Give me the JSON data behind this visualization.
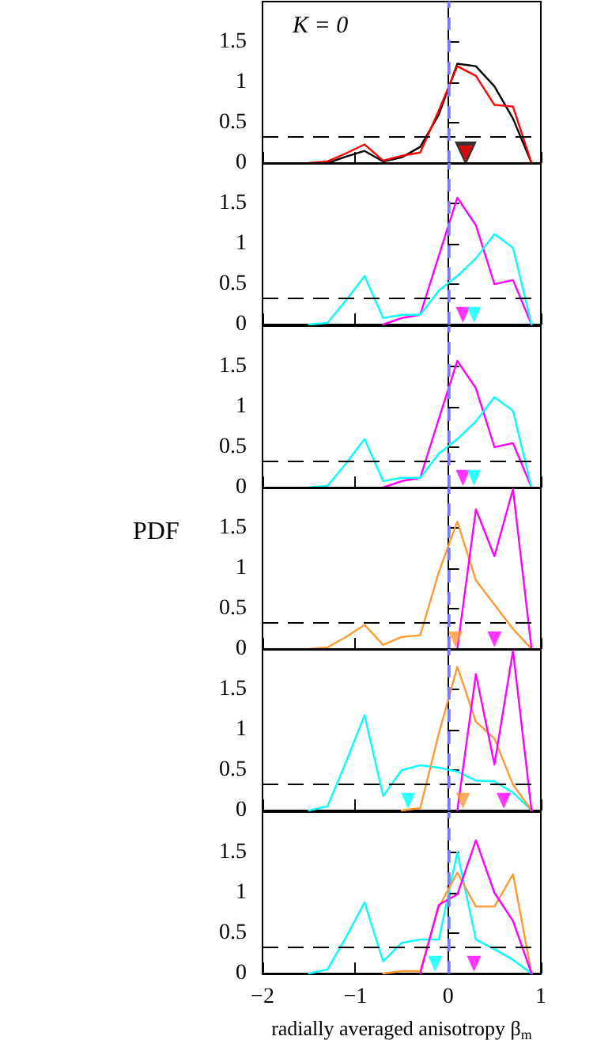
{
  "chart_data": [
    {
      "type": "line",
      "annotations": [
        "K = 0"
      ],
      "x": [
        -1.5,
        -1.3,
        -1.1,
        -0.9,
        -0.7,
        -0.5,
        -0.3,
        -0.1,
        0.1,
        0.3,
        0.5,
        0.7,
        0.9
      ],
      "xlim": [
        -2,
        1
      ],
      "xticks": [
        -2,
        -1,
        0,
        1
      ],
      "ylim": [
        0,
        2
      ],
      "yticks": [
        0,
        0.5,
        1,
        1.5
      ],
      "tick_labels": "y",
      "grid": false,
      "marker": "none",
      "series": [
        {
          "color": "#000000",
          "values": [
            null,
            0,
            0.08,
            0.15,
            0.02,
            0.07,
            0.2,
            0.6,
            1.23,
            1.2,
            0.95,
            0.55,
            0
          ]
        },
        {
          "color": "#ff0000",
          "values": [
            0,
            0.02,
            0.12,
            0.23,
            0.03,
            0.09,
            0.13,
            0.65,
            1.2,
            1.08,
            0.72,
            0.7,
            0
          ]
        },
        {
          "type": "scatter",
          "marker": "triangle",
          "color": "#000000",
          "x": [
            0.19
          ],
          "values": [
            0.12
          ]
        },
        {
          "type": "scatter",
          "marker": "triangle",
          "color": "#ff0000",
          "x": [
            0.19
          ],
          "values": [
            0.12
          ]
        }
      ],
      "ref_lines": [
        {
          "axis": "y",
          "value": 0.33,
          "color": "#000000",
          "line_style": "dashed"
        },
        {
          "axis": "x",
          "value": 0,
          "color": "#8080ff",
          "line_style": "dashed"
        }
      ]
    },
    {
      "type": "line",
      "x": [
        -1.5,
        -1.3,
        -1.1,
        -0.9,
        -0.7,
        -0.5,
        -0.3,
        -0.1,
        0.1,
        0.3,
        0.5,
        0.7,
        0.9
      ],
      "xlim": [
        -2,
        1
      ],
      "xticks": [
        -2,
        -1,
        0,
        1
      ],
      "ylim": [
        0,
        2
      ],
      "yticks": [
        0,
        0.5,
        1,
        1.5
      ],
      "tick_labels": "y",
      "grid": false,
      "marker": "none",
      "series": [
        {
          "color": "#ff00ff",
          "values": [
            null,
            null,
            null,
            null,
            0,
            0.08,
            0.12,
            0.85,
            1.57,
            1.23,
            0.5,
            0.55,
            0
          ]
        },
        {
          "color": "#00ffff",
          "values": [
            0,
            0.02,
            0.3,
            0.6,
            0.08,
            0.12,
            0.12,
            0.42,
            0.6,
            0.82,
            1.12,
            0.95,
            0
          ]
        },
        {
          "type": "scatter",
          "marker": "triangle",
          "color": "#ff00ff",
          "x": [
            0.16
          ],
          "values": [
            0.12
          ]
        },
        {
          "type": "scatter",
          "marker": "triangle",
          "color": "#00ffff",
          "x": [
            0.28
          ],
          "values": [
            0.12
          ]
        }
      ],
      "ref_lines": [
        {
          "axis": "y",
          "value": 0.33,
          "color": "#000000",
          "line_style": "dashed"
        },
        {
          "axis": "x",
          "value": 0,
          "color": "#8080ff",
          "line_style": "dashed"
        }
      ]
    },
    {
      "type": "line",
      "x": [
        -1.5,
        -1.3,
        -1.1,
        -0.9,
        -0.7,
        -0.5,
        -0.3,
        -0.1,
        0.1,
        0.3,
        0.5,
        0.7,
        0.9
      ],
      "xlim": [
        -2,
        1
      ],
      "xticks": [
        -2,
        -1,
        0,
        1
      ],
      "ylim": [
        0,
        2
      ],
      "yticks": [
        0,
        0.5,
        1,
        1.5
      ],
      "tick_labels": "y",
      "grid": false,
      "marker": "none",
      "series": [
        {
          "color": "#ff00ff",
          "values": [
            null,
            null,
            null,
            null,
            0,
            0.08,
            0.12,
            0.85,
            1.57,
            1.23,
            0.5,
            0.55,
            0
          ]
        },
        {
          "color": "#00ffff",
          "values": [
            0,
            0.02,
            0.3,
            0.6,
            0.08,
            0.12,
            0.12,
            0.42,
            0.6,
            0.82,
            1.12,
            0.95,
            0
          ]
        },
        {
          "type": "scatter",
          "marker": "triangle",
          "color": "#ff00ff",
          "x": [
            0.16
          ],
          "values": [
            0.12
          ]
        },
        {
          "type": "scatter",
          "marker": "triangle",
          "color": "#00ffff",
          "x": [
            0.28
          ],
          "values": [
            0.12
          ]
        }
      ],
      "ref_lines": [
        {
          "axis": "y",
          "value": 0.33,
          "color": "#000000",
          "line_style": "dashed"
        },
        {
          "axis": "x",
          "value": 0,
          "color": "#8080ff",
          "line_style": "dashed"
        }
      ]
    },
    {
      "type": "line",
      "ylabel": "PDF",
      "x": [
        -1.5,
        -1.3,
        -1.1,
        -0.9,
        -0.7,
        -0.5,
        -0.3,
        -0.1,
        0.1,
        0.3,
        0.5,
        0.7,
        0.9
      ],
      "xlim": [
        -2,
        1
      ],
      "xticks": [
        -2,
        -1,
        0,
        1
      ],
      "ylim": [
        0,
        2
      ],
      "yticks": [
        0,
        0.5,
        1,
        1.5
      ],
      "tick_labels": "y",
      "grid": false,
      "marker": "none",
      "series": [
        {
          "color": "#ff9933",
          "values": [
            0,
            0.02,
            0.15,
            0.3,
            0.05,
            0.15,
            0.17,
            0.95,
            1.58,
            0.85,
            0.55,
            0.25,
            0
          ]
        },
        {
          "color": "#ff00ff",
          "values": [
            null,
            null,
            null,
            null,
            null,
            null,
            null,
            null,
            0,
            1.73,
            1.15,
            1.98,
            0
          ]
        },
        {
          "type": "scatter",
          "marker": "triangle",
          "color": "#ff9933",
          "x": [
            0.08
          ],
          "values": [
            0.12
          ]
        },
        {
          "type": "scatter",
          "marker": "triangle",
          "color": "#ff00ff",
          "x": [
            0.5
          ],
          "values": [
            0.12
          ]
        }
      ],
      "ref_lines": [
        {
          "axis": "y",
          "value": 0.33,
          "color": "#000000",
          "line_style": "dashed"
        },
        {
          "axis": "x",
          "value": 0,
          "color": "#8080ff",
          "line_style": "dashed"
        }
      ]
    },
    {
      "type": "line",
      "x": [
        -1.5,
        -1.3,
        -1.1,
        -0.9,
        -0.7,
        -0.5,
        -0.3,
        -0.1,
        0.1,
        0.3,
        0.5,
        0.7,
        0.9
      ],
      "xlim": [
        -2,
        1
      ],
      "xticks": [
        -2,
        -1,
        0,
        1
      ],
      "ylim": [
        0,
        2
      ],
      "yticks": [
        0,
        0.5,
        1,
        1.5
      ],
      "tick_labels": "y",
      "grid": false,
      "marker": "none",
      "series": [
        {
          "color": "#00ffff",
          "values": [
            0,
            0.05,
            0.6,
            1.18,
            0.18,
            0.5,
            0.56,
            0.53,
            0.48,
            0.37,
            0.36,
            0.22,
            0
          ]
        },
        {
          "color": "#ff9933",
          "values": [
            null,
            null,
            null,
            null,
            null,
            0,
            0.03,
            0.95,
            1.78,
            1.1,
            0.89,
            0.32,
            0
          ]
        },
        {
          "color": "#ff00ff",
          "values": [
            null,
            null,
            null,
            null,
            null,
            null,
            null,
            null,
            0,
            1.69,
            0.57,
            1.98,
            0
          ]
        },
        {
          "type": "scatter",
          "marker": "triangle",
          "color": "#00ffff",
          "x": [
            -0.43
          ],
          "values": [
            0.12
          ]
        },
        {
          "type": "scatter",
          "marker": "triangle",
          "color": "#ff9933",
          "x": [
            0.16
          ],
          "values": [
            0.12
          ]
        },
        {
          "type": "scatter",
          "marker": "triangle",
          "color": "#ff00ff",
          "x": [
            0.6
          ],
          "values": [
            0.12
          ]
        }
      ],
      "ref_lines": [
        {
          "axis": "y",
          "value": 0.33,
          "color": "#000000",
          "line_style": "dashed"
        },
        {
          "axis": "x",
          "value": 0,
          "color": "#8080ff",
          "line_style": "dashed"
        }
      ]
    },
    {
      "type": "line",
      "xlabel": "radially averaged anisotropy β$_{m}$",
      "x": [
        -1.5,
        -1.3,
        -1.1,
        -0.9,
        -0.7,
        -0.5,
        -0.3,
        -0.1,
        0.1,
        0.3,
        0.5,
        0.7,
        0.9
      ],
      "xlim": [
        -2,
        1
      ],
      "xticks": [
        -2,
        -1,
        0,
        1
      ],
      "ylim": [
        0,
        2
      ],
      "yticks": [
        0,
        0.5,
        1,
        1.5
      ],
      "grid": false,
      "marker": "none",
      "series": [
        {
          "color": "#00ffff",
          "values": [
            0,
            0.05,
            0.45,
            0.88,
            0.15,
            0.38,
            0.42,
            0.42,
            1.5,
            0.42,
            0.3,
            0.17,
            0
          ]
        },
        {
          "color": "#ff9933",
          "values": [
            null,
            null,
            null,
            null,
            0,
            0.03,
            0.03,
            0.82,
            1.25,
            0.83,
            0.83,
            1.23,
            0
          ]
        },
        {
          "color": "#ff00ff",
          "values": [
            null,
            null,
            null,
            null,
            null,
            null,
            0,
            0.85,
            0.98,
            1.65,
            1.0,
            0.65,
            0
          ]
        },
        {
          "type": "scatter",
          "marker": "triangle",
          "color": "#00ffff",
          "x": [
            -0.14
          ],
          "values": [
            0.12
          ]
        },
        {
          "type": "scatter",
          "marker": "triangle",
          "color": "#ff00ff",
          "x": [
            0.28
          ],
          "values": [
            0.12
          ]
        }
      ],
      "ref_lines": [
        {
          "axis": "y",
          "value": 0.33,
          "color": "#000000",
          "line_style": "dashed"
        },
        {
          "axis": "x",
          "value": 0,
          "color": "#8080ff",
          "line_style": "dashed"
        }
      ]
    }
  ]
}
